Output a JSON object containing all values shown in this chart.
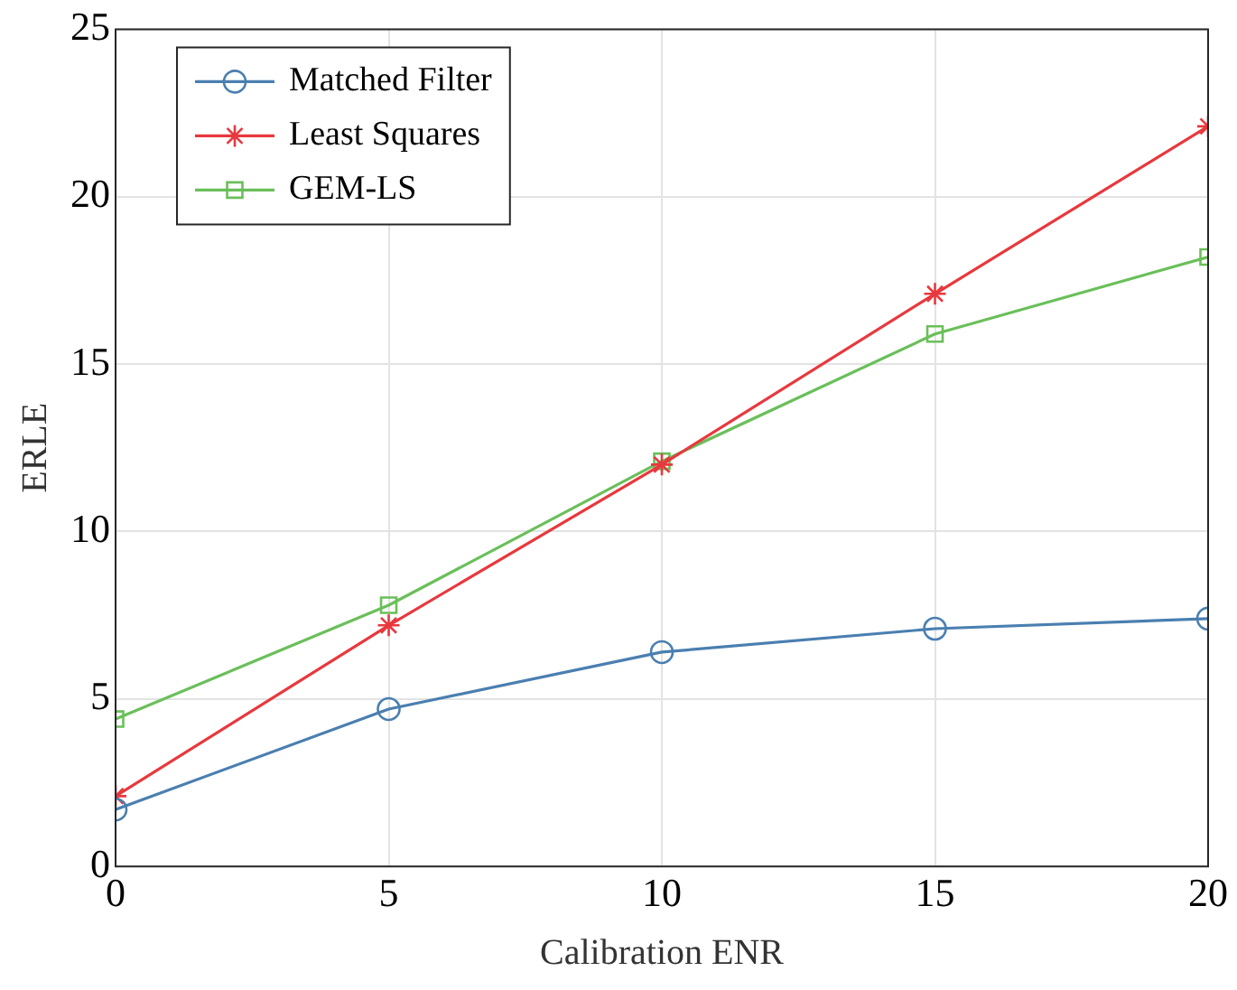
{
  "chart_data": {
    "type": "line",
    "xlabel": "Calibration ENR",
    "ylabel": "ERLE",
    "x": [
      0,
      5,
      10,
      15,
      20
    ],
    "xlim": [
      0,
      20
    ],
    "xticks": [
      0,
      5,
      10,
      15,
      20
    ],
    "ylim": [
      0,
      25
    ],
    "yticks": [
      0,
      5,
      10,
      15,
      20,
      25
    ],
    "grid": true,
    "legend": "top left",
    "line_style": "solid",
    "series": [
      {
        "name": "Matched Filter",
        "color": "#4a7fb0",
        "marker": "circle",
        "values": [
          1.7,
          4.7,
          6.4,
          7.1,
          7.4
        ]
      },
      {
        "name": "Least Squares",
        "color": "#e8383d",
        "marker": "cross",
        "values": [
          2.1,
          7.2,
          12.0,
          17.1,
          22.1
        ]
      },
      {
        "name": "GEM-LS",
        "color": "#6abf5a",
        "marker": "square",
        "values": [
          4.4,
          7.8,
          12.1,
          15.9,
          18.2
        ]
      }
    ]
  }
}
